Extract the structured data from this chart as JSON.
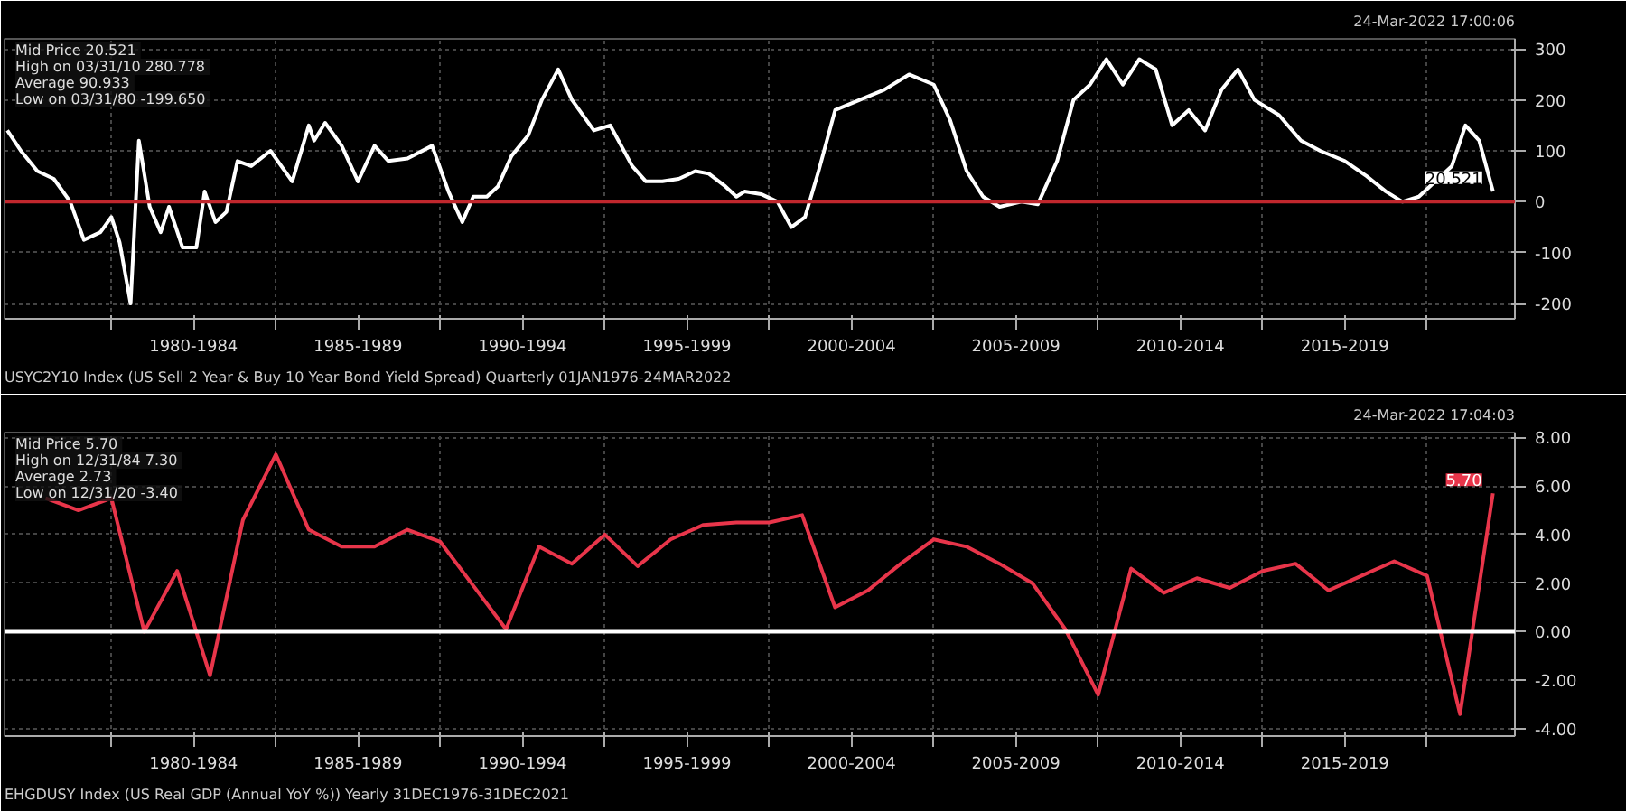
{
  "chart_data": [
    {
      "type": "line",
      "x": [
        "1976-11",
        "1977-04",
        "1977-10",
        "1978-04",
        "1978-10",
        "1979-03",
        "1979-09",
        "1980-01",
        "1980-04",
        "1980-08",
        "1980-11",
        "1981-03",
        "1981-07",
        "1981-10",
        "1982-03",
        "1982-08",
        "1982-11",
        "1983-03",
        "1983-07",
        "1983-11",
        "1984-04",
        "1984-11",
        "1985-07",
        "1986-01",
        "1986-03",
        "1986-07",
        "1987-01",
        "1987-07",
        "1988-01",
        "1988-06",
        "1989-01",
        "1989-10",
        "1990-04",
        "1990-09",
        "1991-01",
        "1991-06",
        "1991-10",
        "1992-03",
        "1992-09",
        "1993-02",
        "1993-08",
        "1994-01",
        "1994-09",
        "1995-03",
        "1995-11",
        "1996-04",
        "1996-10",
        "1997-04",
        "1997-10",
        "1998-03",
        "1998-09",
        "1999-01",
        "1999-04",
        "1999-10",
        "2000-04",
        "2000-09",
        "2001-02",
        "2001-07",
        "2002-01",
        "2002-10",
        "2003-07",
        "2004-04",
        "2005-01",
        "2005-07",
        "2006-01",
        "2006-07",
        "2007-01",
        "2007-09",
        "2008-03",
        "2008-10",
        "2009-04",
        "2009-10",
        "2010-04",
        "2010-10",
        "2011-04",
        "2011-10",
        "2012-04",
        "2012-10",
        "2013-04",
        "2013-10",
        "2014-04",
        "2014-10",
        "2015-07",
        "2016-03",
        "2016-10",
        "2017-07",
        "2018-03",
        "2018-10",
        "2019-04",
        "2019-10",
        "2020-04",
        "2020-10",
        "2021-03",
        "2021-08",
        "2022-01"
      ],
      "series": [
        {
          "color": "#ffffff",
          "values": [
            140,
            100,
            60,
            45,
            0,
            -75,
            -60,
            -30,
            -80,
            -200,
            120,
            -10,
            -60,
            -10,
            -90,
            -90,
            20,
            -40,
            -20,
            80,
            70,
            100,
            40,
            150,
            120,
            155,
            110,
            40,
            110,
            80,
            85,
            110,
            20,
            -40,
            10,
            10,
            30,
            90,
            130,
            200,
            260,
            200,
            140,
            150,
            70,
            40,
            40,
            45,
            60,
            55,
            30,
            10,
            20,
            15,
            0,
            -50,
            -30,
            60,
            180,
            200,
            220,
            250,
            230,
            160,
            60,
            10,
            -10,
            0,
            -5,
            80,
            200,
            230,
            280,
            230,
            280,
            260,
            150,
            180,
            140,
            220,
            260,
            200,
            170,
            120,
            100,
            80,
            50,
            20,
            0,
            10,
            40,
            70,
            150,
            120,
            20
          ]
        }
      ],
      "xlim": [
        "1976-10",
        "2022-09"
      ],
      "xticks": [
        {
          "value": "1980-01",
          "label": null
        },
        {
          "value": "1982-07",
          "label": "1980-1984"
        },
        {
          "value": "1985-01",
          "label": null
        },
        {
          "value": "1987-07",
          "label": "1985-1989"
        },
        {
          "value": "1990-01",
          "label": null
        },
        {
          "value": "1992-07",
          "label": "1990-1994"
        },
        {
          "value": "1995-01",
          "label": null
        },
        {
          "value": "1997-07",
          "label": "1995-1999"
        },
        {
          "value": "2000-01",
          "label": null
        },
        {
          "value": "2002-07",
          "label": "2000-2004"
        },
        {
          "value": "2005-01",
          "label": null
        },
        {
          "value": "2007-07",
          "label": "2005-2009"
        },
        {
          "value": "2010-01",
          "label": null
        },
        {
          "value": "2012-07",
          "label": "2010-2014"
        },
        {
          "value": "2015-01",
          "label": null
        },
        {
          "value": "2017-07",
          "label": "2015-2019"
        },
        {
          "value": "2020-01",
          "label": null
        }
      ],
      "ylim": [
        -230,
        320
      ],
      "yticks": [
        -200,
        -100,
        0,
        100,
        200,
        300
      ],
      "grid": true,
      "ref_lines": [
        {
          "axis": "y",
          "value": 0,
          "color": "#c0272d"
        }
      ],
      "annotations": [
        "Mid Price  20.521",
        "High on 03/31/10  280.778",
        "Average  90.933",
        "Low on 03/31/80  -199.650",
        "USYC2Y10 Index (US Sell 2 Year & Buy 10 Year Bond Yield Spread) Quarterly 01JAN1976-24MAR2022",
        "24-Mar-2022 17:00:06",
        {
          "text": "20.521",
          "x": "2022-01",
          "y": 20.521
        }
      ]
    },
    {
      "type": "line",
      "x": [
        "1977-12-31",
        "1978-12-31",
        "1979-12-31",
        "1980-12-31",
        "1981-12-31",
        "1982-12-31",
        "1983-12-31",
        "1984-12-31",
        "1985-12-31",
        "1986-12-31",
        "1987-12-31",
        "1988-12-31",
        "1989-12-31",
        "1990-12-31",
        "1991-12-31",
        "1992-12-31",
        "1993-12-31",
        "1994-12-31",
        "1995-12-31",
        "1996-12-31",
        "1997-12-31",
        "1998-12-31",
        "1999-12-31",
        "2000-12-31",
        "2001-12-31",
        "2002-12-31",
        "2003-12-31",
        "2004-12-31",
        "2005-12-31",
        "2006-12-31",
        "2007-12-31",
        "2008-12-31",
        "2009-12-31",
        "2010-12-31",
        "2011-12-31",
        "2012-12-31",
        "2013-12-31",
        "2014-12-31",
        "2015-12-31",
        "2016-12-31",
        "2017-12-31",
        "2018-12-31",
        "2019-12-31",
        "2020-12-31",
        "2021-12-31"
      ],
      "series": [
        {
          "color": "#e8354a",
          "values": [
            5.5,
            5.0,
            5.5,
            0.0,
            2.5,
            -1.8,
            4.6,
            7.3,
            4.2,
            3.5,
            3.5,
            4.2,
            3.7,
            1.9,
            0.1,
            3.5,
            2.8,
            4.0,
            2.7,
            3.8,
            4.4,
            4.5,
            4.5,
            4.8,
            1.0,
            1.7,
            2.8,
            3.8,
            3.5,
            2.8,
            2.0,
            0.1,
            -2.6,
            2.6,
            1.6,
            2.2,
            1.8,
            2.5,
            2.8,
            1.7,
            2.3,
            2.9,
            2.3,
            -3.4,
            5.7
          ]
        }
      ],
      "xlim": [
        "1976-10",
        "2022-09"
      ],
      "xticks": [
        {
          "value": "1980-01",
          "label": null
        },
        {
          "value": "1982-07",
          "label": "1980-1984"
        },
        {
          "value": "1985-01",
          "label": null
        },
        {
          "value": "1987-07",
          "label": "1985-1989"
        },
        {
          "value": "1990-01",
          "label": null
        },
        {
          "value": "1992-07",
          "label": "1990-1994"
        },
        {
          "value": "1995-01",
          "label": null
        },
        {
          "value": "1997-07",
          "label": "1995-1999"
        },
        {
          "value": "2000-01",
          "label": null
        },
        {
          "value": "2002-07",
          "label": "2000-2004"
        },
        {
          "value": "2005-01",
          "label": null
        },
        {
          "value": "2007-07",
          "label": "2005-2009"
        },
        {
          "value": "2010-01",
          "label": null
        },
        {
          "value": "2012-07",
          "label": "2010-2014"
        },
        {
          "value": "2015-01",
          "label": null
        },
        {
          "value": "2017-07",
          "label": "2015-2019"
        },
        {
          "value": "2020-01",
          "label": null
        }
      ],
      "ylim": [
        -4.3,
        8.2
      ],
      "yticks": [
        {
          "value": -4,
          "label": "-4.00"
        },
        {
          "value": -2,
          "label": "-2.00"
        },
        {
          "value": 0,
          "label": "0.00"
        },
        {
          "value": 2,
          "label": "2.00"
        },
        {
          "value": 4,
          "label": "4.00"
        },
        {
          "value": 6,
          "label": "6.00"
        },
        {
          "value": 8,
          "label": "8.00"
        }
      ],
      "grid": true,
      "ref_lines": [
        {
          "axis": "y",
          "value": 0,
          "color": "#ffffff"
        }
      ],
      "annotations": [
        "Mid Price  5.70",
        "High on 12/31/84  7.30",
        "Average  2.73",
        "Low on 12/31/20  -3.40",
        "EHGDUSY Index (US Real GDP (Annual YoY %)) Yearly 31DEC1976-31DEC2021",
        "24-Mar-2022 17:04:03",
        {
          "text": "5.70",
          "x": "2021-12-31",
          "y": 5.7
        }
      ]
    }
  ]
}
